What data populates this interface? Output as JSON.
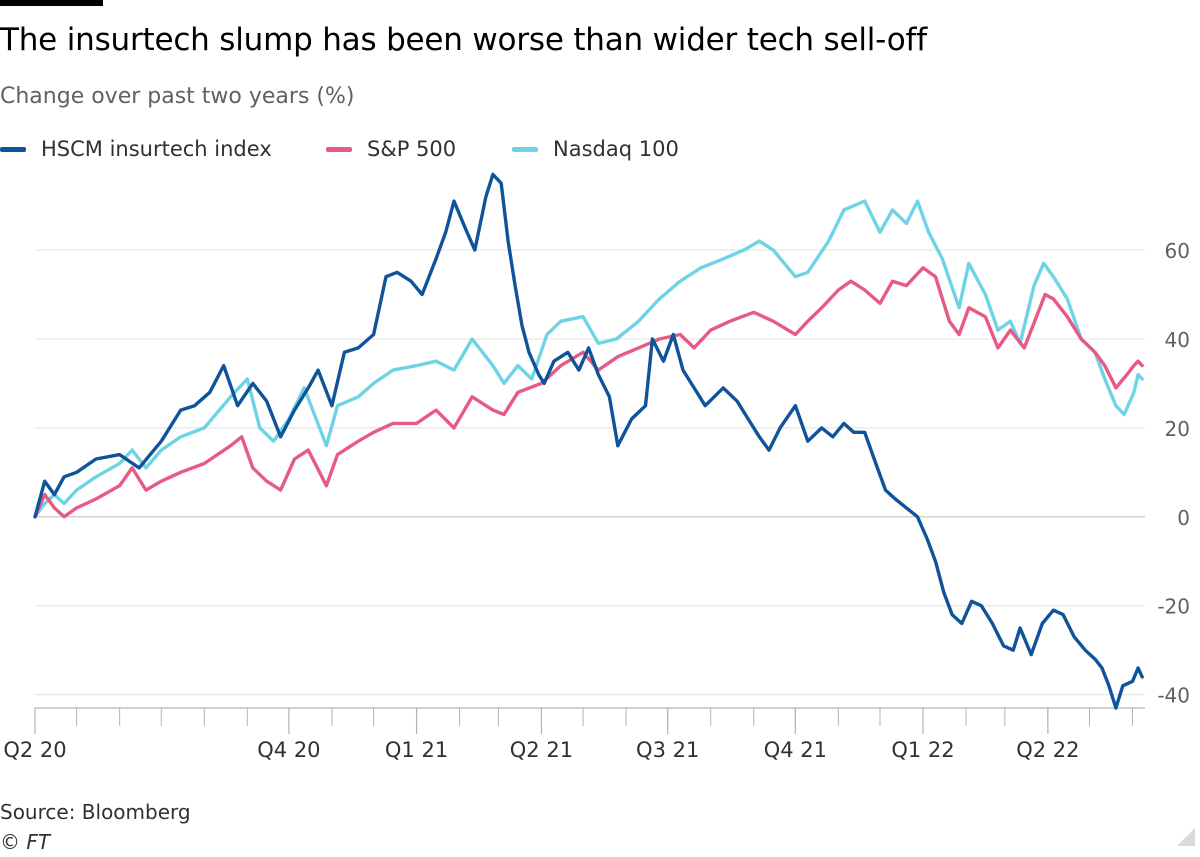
{
  "title": "The insurtech slump has been worse than wider tech sell-off",
  "subtitle": "Change over past two years (%)",
  "source": "Source: Bloomberg",
  "credit": "© FT",
  "colors": {
    "hscm": "#0f5499",
    "sp500": "#e65a85",
    "nasdaq": "#6fd3e6",
    "grid": "#e8e6e3",
    "zero": "#c9c9b0",
    "axis": "#b3b3b3",
    "tick_text": "#66605c"
  },
  "chart_data": {
    "type": "line",
    "xlabel": "",
    "ylabel": "",
    "x_tick_labels": [
      "Q2 20",
      "Q4 20",
      "Q1 21",
      "Q2 21",
      "Q3 21",
      "Q4 21",
      "Q1 22",
      "Q2 22"
    ],
    "x_tick_dates": [
      "2020-04-01",
      "2020-10-01",
      "2021-01-01",
      "2021-04-01",
      "2021-07-01",
      "2021-10-01",
      "2022-01-01",
      "2022-04-01"
    ],
    "xlim": [
      "2020-04-01",
      "2022-06-10"
    ],
    "y_ticks": [
      60,
      40,
      20,
      0,
      -20,
      -40
    ],
    "ylim": [
      -43,
      78
    ],
    "grid": true,
    "legend_position": "top-left",
    "series": [
      {
        "name": "HSCM insurtech index",
        "color": "#0f5499",
        "points": [
          [
            "2020-04-01",
            0
          ],
          [
            "2020-04-08",
            8
          ],
          [
            "2020-04-15",
            5
          ],
          [
            "2020-04-22",
            9
          ],
          [
            "2020-05-01",
            10
          ],
          [
            "2020-05-15",
            13
          ],
          [
            "2020-06-01",
            14
          ],
          [
            "2020-06-15",
            11
          ],
          [
            "2020-07-01",
            17
          ],
          [
            "2020-07-15",
            24
          ],
          [
            "2020-07-25",
            25
          ],
          [
            "2020-08-05",
            28
          ],
          [
            "2020-08-15",
            34
          ],
          [
            "2020-08-25",
            25
          ],
          [
            "2020-09-05",
            30
          ],
          [
            "2020-09-15",
            26
          ],
          [
            "2020-09-25",
            18
          ],
          [
            "2020-10-05",
            24
          ],
          [
            "2020-10-15",
            29
          ],
          [
            "2020-10-22",
            33
          ],
          [
            "2020-11-01",
            25
          ],
          [
            "2020-11-10",
            37
          ],
          [
            "2020-11-20",
            38
          ],
          [
            "2020-12-01",
            41
          ],
          [
            "2020-12-10",
            54
          ],
          [
            "2020-12-18",
            55
          ],
          [
            "2020-12-28",
            53
          ],
          [
            "2021-01-05",
            50
          ],
          [
            "2021-01-15",
            58
          ],
          [
            "2021-01-22",
            64
          ],
          [
            "2021-01-28",
            71
          ],
          [
            "2021-02-05",
            65
          ],
          [
            "2021-02-12",
            60
          ],
          [
            "2021-02-20",
            72
          ],
          [
            "2021-02-25",
            77
          ],
          [
            "2021-03-03",
            75
          ],
          [
            "2021-03-08",
            62
          ],
          [
            "2021-03-13",
            52
          ],
          [
            "2021-03-18",
            43
          ],
          [
            "2021-03-23",
            37
          ],
          [
            "2021-03-30",
            32
          ],
          [
            "2021-04-03",
            30
          ],
          [
            "2021-04-10",
            35
          ],
          [
            "2021-04-20",
            37
          ],
          [
            "2021-04-28",
            33
          ],
          [
            "2021-05-05",
            38
          ],
          [
            "2021-05-12",
            32
          ],
          [
            "2021-05-20",
            27
          ],
          [
            "2021-05-26",
            16
          ],
          [
            "2021-06-05",
            22
          ],
          [
            "2021-06-15",
            25
          ],
          [
            "2021-06-20",
            40
          ],
          [
            "2021-06-28",
            35
          ],
          [
            "2021-07-05",
            41
          ],
          [
            "2021-07-12",
            33
          ],
          [
            "2021-07-20",
            29
          ],
          [
            "2021-07-28",
            25
          ],
          [
            "2021-08-10",
            29
          ],
          [
            "2021-08-20",
            26
          ],
          [
            "2021-08-28",
            22
          ],
          [
            "2021-09-05",
            18
          ],
          [
            "2021-09-12",
            15
          ],
          [
            "2021-09-20",
            20
          ],
          [
            "2021-10-01",
            25
          ],
          [
            "2021-10-10",
            17
          ],
          [
            "2021-10-20",
            20
          ],
          [
            "2021-10-28",
            18
          ],
          [
            "2021-11-05",
            21
          ],
          [
            "2021-11-12",
            19
          ],
          [
            "2021-11-20",
            19
          ],
          [
            "2021-11-28",
            12
          ],
          [
            "2021-12-05",
            6
          ],
          [
            "2021-12-12",
            4
          ],
          [
            "2021-12-20",
            2
          ],
          [
            "2021-12-28",
            0
          ],
          [
            "2022-01-04",
            -5
          ],
          [
            "2022-01-10",
            -10
          ],
          [
            "2022-01-16",
            -17
          ],
          [
            "2022-01-22",
            -22
          ],
          [
            "2022-01-29",
            -24
          ],
          [
            "2022-02-05",
            -19
          ],
          [
            "2022-02-12",
            -20
          ],
          [
            "2022-02-20",
            -24
          ],
          [
            "2022-02-28",
            -29
          ],
          [
            "2022-03-07",
            -30
          ],
          [
            "2022-03-12",
            -25
          ],
          [
            "2022-03-20",
            -31
          ],
          [
            "2022-03-28",
            -24
          ],
          [
            "2022-04-05",
            -21
          ],
          [
            "2022-04-12",
            -22
          ],
          [
            "2022-04-20",
            -27
          ],
          [
            "2022-04-28",
            -30
          ],
          [
            "2022-05-05",
            -32
          ],
          [
            "2022-05-10",
            -34
          ],
          [
            "2022-05-15",
            -38
          ],
          [
            "2022-05-20",
            -43
          ],
          [
            "2022-05-25",
            -38
          ],
          [
            "2022-06-01",
            -37
          ],
          [
            "2022-06-05",
            -34
          ],
          [
            "2022-06-08",
            -36
          ]
        ]
      },
      {
        "name": "S&P 500",
        "color": "#e65a85",
        "points": [
          [
            "2020-04-01",
            0
          ],
          [
            "2020-04-08",
            5
          ],
          [
            "2020-04-15",
            2
          ],
          [
            "2020-04-22",
            0
          ],
          [
            "2020-05-01",
            2
          ],
          [
            "2020-05-15",
            4
          ],
          [
            "2020-06-01",
            7
          ],
          [
            "2020-06-10",
            11
          ],
          [
            "2020-06-20",
            6
          ],
          [
            "2020-07-01",
            8
          ],
          [
            "2020-07-15",
            10
          ],
          [
            "2020-08-01",
            12
          ],
          [
            "2020-08-20",
            16
          ],
          [
            "2020-08-28",
            18
          ],
          [
            "2020-09-05",
            11
          ],
          [
            "2020-09-15",
            8
          ],
          [
            "2020-09-25",
            6
          ],
          [
            "2020-10-05",
            13
          ],
          [
            "2020-10-15",
            15
          ],
          [
            "2020-10-28",
            7
          ],
          [
            "2020-11-05",
            14
          ],
          [
            "2020-11-20",
            17
          ],
          [
            "2020-12-01",
            19
          ],
          [
            "2020-12-15",
            21
          ],
          [
            "2021-01-01",
            21
          ],
          [
            "2021-01-15",
            24
          ],
          [
            "2021-01-28",
            20
          ],
          [
            "2021-02-10",
            27
          ],
          [
            "2021-02-25",
            24
          ],
          [
            "2021-03-05",
            23
          ],
          [
            "2021-03-15",
            28
          ],
          [
            "2021-04-01",
            30
          ],
          [
            "2021-04-15",
            34
          ],
          [
            "2021-05-01",
            37
          ],
          [
            "2021-05-12",
            33
          ],
          [
            "2021-05-26",
            36
          ],
          [
            "2021-06-10",
            38
          ],
          [
            "2021-06-25",
            40
          ],
          [
            "2021-07-10",
            41
          ],
          [
            "2021-07-20",
            38
          ],
          [
            "2021-08-01",
            42
          ],
          [
            "2021-08-15",
            44
          ],
          [
            "2021-09-01",
            46
          ],
          [
            "2021-09-15",
            44
          ],
          [
            "2021-10-01",
            41
          ],
          [
            "2021-10-10",
            44
          ],
          [
            "2021-10-20",
            47
          ],
          [
            "2021-11-01",
            51
          ],
          [
            "2021-11-10",
            53
          ],
          [
            "2021-11-20",
            51
          ],
          [
            "2021-12-01",
            48
          ],
          [
            "2021-12-10",
            53
          ],
          [
            "2021-12-20",
            52
          ],
          [
            "2022-01-01",
            56
          ],
          [
            "2022-01-10",
            54
          ],
          [
            "2022-01-20",
            44
          ],
          [
            "2022-01-27",
            41
          ],
          [
            "2022-02-03",
            47
          ],
          [
            "2022-02-15",
            45
          ],
          [
            "2022-02-24",
            38
          ],
          [
            "2022-03-05",
            42
          ],
          [
            "2022-03-15",
            38
          ],
          [
            "2022-03-30",
            50
          ],
          [
            "2022-04-05",
            49
          ],
          [
            "2022-04-15",
            45
          ],
          [
            "2022-04-25",
            40
          ],
          [
            "2022-05-05",
            37
          ],
          [
            "2022-05-12",
            34
          ],
          [
            "2022-05-20",
            29
          ],
          [
            "2022-05-28",
            32
          ],
          [
            "2022-06-02",
            34
          ],
          [
            "2022-06-05",
            35
          ],
          [
            "2022-06-08",
            34
          ]
        ]
      },
      {
        "name": "Nasdaq 100",
        "color": "#6fd3e6",
        "points": [
          [
            "2020-04-01",
            0
          ],
          [
            "2020-04-08",
            3
          ],
          [
            "2020-04-15",
            5
          ],
          [
            "2020-04-22",
            3
          ],
          [
            "2020-05-01",
            6
          ],
          [
            "2020-05-15",
            9
          ],
          [
            "2020-06-01",
            12
          ],
          [
            "2020-06-10",
            15
          ],
          [
            "2020-06-20",
            11
          ],
          [
            "2020-07-01",
            15
          ],
          [
            "2020-07-15",
            18
          ],
          [
            "2020-08-01",
            20
          ],
          [
            "2020-08-20",
            27
          ],
          [
            "2020-09-01",
            31
          ],
          [
            "2020-09-10",
            20
          ],
          [
            "2020-09-20",
            17
          ],
          [
            "2020-10-01",
            22
          ],
          [
            "2020-10-12",
            29
          ],
          [
            "2020-10-28",
            16
          ],
          [
            "2020-11-05",
            25
          ],
          [
            "2020-11-20",
            27
          ],
          [
            "2020-12-01",
            30
          ],
          [
            "2020-12-15",
            33
          ],
          [
            "2021-01-01",
            34
          ],
          [
            "2021-01-15",
            35
          ],
          [
            "2021-01-28",
            33
          ],
          [
            "2021-02-10",
            40
          ],
          [
            "2021-02-25",
            34
          ],
          [
            "2021-03-05",
            30
          ],
          [
            "2021-03-15",
            34
          ],
          [
            "2021-03-25",
            31
          ],
          [
            "2021-04-05",
            41
          ],
          [
            "2021-04-15",
            44
          ],
          [
            "2021-05-01",
            45
          ],
          [
            "2021-05-12",
            39
          ],
          [
            "2021-05-25",
            40
          ],
          [
            "2021-06-10",
            44
          ],
          [
            "2021-06-25",
            49
          ],
          [
            "2021-07-10",
            53
          ],
          [
            "2021-07-25",
            56
          ],
          [
            "2021-08-10",
            58
          ],
          [
            "2021-08-25",
            60
          ],
          [
            "2021-09-05",
            62
          ],
          [
            "2021-09-15",
            60
          ],
          [
            "2021-10-01",
            54
          ],
          [
            "2021-10-10",
            55
          ],
          [
            "2021-10-25",
            62
          ],
          [
            "2021-11-05",
            69
          ],
          [
            "2021-11-20",
            71
          ],
          [
            "2021-12-01",
            64
          ],
          [
            "2021-12-10",
            69
          ],
          [
            "2021-12-20",
            66
          ],
          [
            "2021-12-28",
            71
          ],
          [
            "2022-01-05",
            64
          ],
          [
            "2022-01-15",
            58
          ],
          [
            "2022-01-27",
            47
          ],
          [
            "2022-02-03",
            57
          ],
          [
            "2022-02-15",
            50
          ],
          [
            "2022-02-24",
            42
          ],
          [
            "2022-03-05",
            44
          ],
          [
            "2022-03-12",
            39
          ],
          [
            "2022-03-22",
            52
          ],
          [
            "2022-03-29",
            57
          ],
          [
            "2022-04-05",
            54
          ],
          [
            "2022-04-15",
            49
          ],
          [
            "2022-04-25",
            40
          ],
          [
            "2022-05-05",
            37
          ],
          [
            "2022-05-12",
            31
          ],
          [
            "2022-05-20",
            25
          ],
          [
            "2022-05-26",
            23
          ],
          [
            "2022-06-02",
            28
          ],
          [
            "2022-06-05",
            32
          ],
          [
            "2022-06-08",
            31
          ]
        ]
      }
    ]
  }
}
